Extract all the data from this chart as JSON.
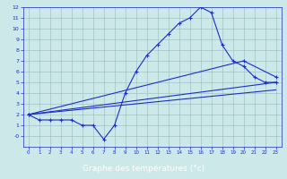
{
  "main_x": [
    0,
    1,
    2,
    3,
    4,
    5,
    6,
    7,
    8,
    9,
    10,
    11,
    12,
    13,
    14,
    15,
    16,
    17,
    18,
    19,
    20,
    21,
    22,
    23
  ],
  "main_y": [
    2.0,
    1.5,
    1.5,
    1.5,
    1.5,
    1.0,
    1.0,
    -0.3,
    1.0,
    4.0,
    6.0,
    7.5,
    8.5,
    9.5,
    10.5,
    11.0,
    12.0,
    11.5,
    8.5,
    7.0,
    6.5,
    5.5,
    5.0,
    5.0
  ],
  "line2_x": [
    0,
    23
  ],
  "line2_y": [
    2.0,
    5.0
  ],
  "line3_x": [
    0,
    20,
    23
  ],
  "line3_y": [
    2.0,
    7.0,
    5.5
  ],
  "line4_x": [
    0,
    23
  ],
  "line4_y": [
    2.0,
    4.3
  ],
  "bg_color": "#cce8e8",
  "line_color": "#1a2fcc",
  "grid_color": "#99bbbb",
  "xlabel": "Graphe des températures (°c)",
  "xlim": [
    -0.5,
    23.5
  ],
  "ylim": [
    -1,
    12
  ],
  "yticks": [
    0,
    1,
    2,
    3,
    4,
    5,
    6,
    7,
    8,
    9,
    10,
    11,
    12
  ],
  "xticks": [
    0,
    1,
    2,
    3,
    4,
    5,
    6,
    7,
    8,
    9,
    10,
    11,
    12,
    13,
    14,
    15,
    16,
    17,
    18,
    19,
    20,
    21,
    22,
    23
  ]
}
